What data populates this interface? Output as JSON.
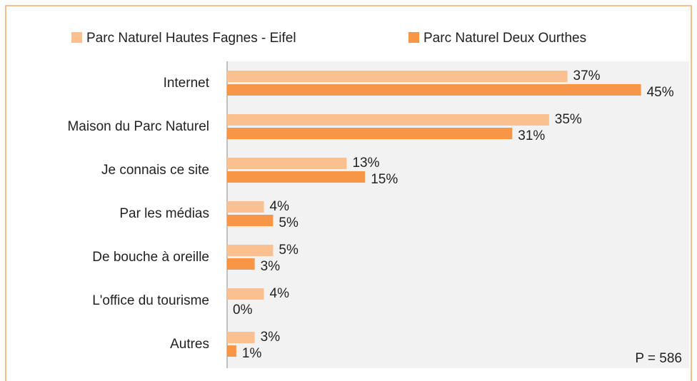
{
  "chart_data": {
    "type": "hbar",
    "categories": [
      "Internet",
      "Maison du Parc Naturel",
      "Je connais ce site",
      "Par les médias",
      "De bouche à oreille",
      "L'office du tourisme",
      "Autres"
    ],
    "series": [
      {
        "name": "Parc Naturel Hautes Fagnes - Eifel",
        "color": "#fac090",
        "values": [
          37,
          35,
          13,
          4,
          5,
          4,
          3
        ],
        "value_labels": [
          "37%",
          "35%",
          "13%",
          "4%",
          "5%",
          "4%",
          "3%"
        ]
      },
      {
        "name": "Parc Naturel Deux Ourthes",
        "color": "#f79646",
        "values": [
          45,
          31,
          15,
          5,
          3,
          0,
          1
        ],
        "value_labels": [
          "45%",
          "31%",
          "15%",
          "5%",
          "3%",
          "0%",
          "1%"
        ]
      }
    ],
    "xlim": [
      0,
      50
    ],
    "annotation": "P = 586"
  }
}
